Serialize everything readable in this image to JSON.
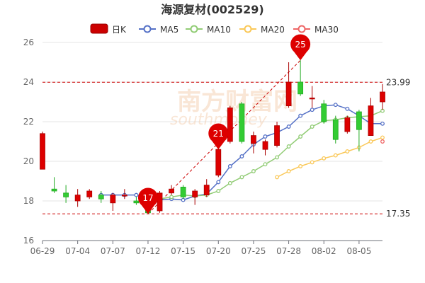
{
  "chart_data": {
    "type": "candlestick",
    "title": "海源复材(002529)",
    "watermark": "南方财富网",
    "watermark_sub": "southmoney",
    "legend": [
      {
        "name": "日K",
        "color": "#cc0000",
        "style": "box"
      },
      {
        "name": "MA5",
        "color": "#5470c6",
        "style": "line"
      },
      {
        "name": "MA10",
        "color": "#91cc75",
        "style": "line"
      },
      {
        "name": "MA20",
        "color": "#fac858",
        "style": "line"
      },
      {
        "name": "MA30",
        "color": "#ee6666",
        "style": "line"
      }
    ],
    "ylim": [
      16,
      26
    ],
    "yticks": [
      16,
      18,
      20,
      22,
      24,
      26
    ],
    "xtick_labels": [
      {
        "label": "06-29",
        "index": 0
      },
      {
        "label": "07-04",
        "index": 3
      },
      {
        "label": "07-07",
        "index": 6
      },
      {
        "label": "07-12",
        "index": 9
      },
      {
        "label": "07-15",
        "index": 12
      },
      {
        "label": "07-20",
        "index": 15
      },
      {
        "label": "07-25",
        "index": 18
      },
      {
        "label": "07-28",
        "index": 21
      },
      {
        "label": "08-02",
        "index": 24
      },
      {
        "label": "08-05",
        "index": 27
      }
    ],
    "up_color": "#dd0000",
    "down_color": "#33cc33",
    "candles": [
      {
        "o": 19.6,
        "c": 21.4,
        "h": 21.5,
        "l": 19.6
      },
      {
        "o": 18.6,
        "c": 18.5,
        "h": 19.2,
        "l": 18.4
      },
      {
        "o": 18.4,
        "c": 18.2,
        "h": 18.8,
        "l": 17.9
      },
      {
        "o": 18.0,
        "c": 18.3,
        "h": 18.6,
        "l": 17.7
      },
      {
        "o": 18.2,
        "c": 18.5,
        "h": 18.6,
        "l": 18.1
      },
      {
        "o": 18.3,
        "c": 18.1,
        "h": 18.5,
        "l": 17.9
      },
      {
        "o": 17.9,
        "c": 18.3,
        "h": 18.4,
        "l": 17.5
      },
      {
        "o": 18.3,
        "c": 18.3,
        "h": 18.6,
        "l": 18.1
      },
      {
        "o": 18.0,
        "c": 17.9,
        "h": 18.2,
        "l": 17.8
      },
      {
        "o": 17.9,
        "c": 17.4,
        "h": 18.1,
        "l": 17.35
      },
      {
        "o": 17.5,
        "c": 18.4,
        "h": 18.5,
        "l": 17.4
      },
      {
        "o": 18.4,
        "c": 18.6,
        "h": 18.8,
        "l": 18.3
      },
      {
        "o": 18.7,
        "c": 18.2,
        "h": 18.8,
        "l": 18.1
      },
      {
        "o": 18.2,
        "c": 18.5,
        "h": 18.6,
        "l": 17.8
      },
      {
        "o": 18.3,
        "c": 18.8,
        "h": 19.1,
        "l": 18.2
      },
      {
        "o": 19.3,
        "c": 20.6,
        "h": 20.7,
        "l": 19.2
      },
      {
        "o": 21.0,
        "c": 22.7,
        "h": 22.8,
        "l": 20.9
      },
      {
        "o": 22.9,
        "c": 21.0,
        "h": 23.0,
        "l": 20.9
      },
      {
        "o": 20.9,
        "c": 21.3,
        "h": 21.5,
        "l": 20.4
      },
      {
        "o": 20.6,
        "c": 21.0,
        "h": 21.1,
        "l": 20.3
      },
      {
        "o": 20.8,
        "c": 21.8,
        "h": 22.0,
        "l": 20.7
      },
      {
        "o": 22.8,
        "c": 24.0,
        "h": 25.0,
        "l": 22.7
      },
      {
        "o": 24.0,
        "c": 23.4,
        "h": 25.1,
        "l": 23.3
      },
      {
        "o": 23.2,
        "c": 23.2,
        "h": 23.8,
        "l": 22.7
      },
      {
        "o": 22.9,
        "c": 22.0,
        "h": 23.1,
        "l": 21.9
      },
      {
        "o": 22.1,
        "c": 21.1,
        "h": 22.3,
        "l": 20.9
      },
      {
        "o": 21.5,
        "c": 22.2,
        "h": 22.3,
        "l": 21.4
      },
      {
        "o": 22.5,
        "c": 21.6,
        "h": 22.6,
        "l": 20.5
      },
      {
        "o": 21.3,
        "c": 22.8,
        "h": 23.2,
        "l": 21.3
      },
      {
        "o": 23.0,
        "c": 23.5,
        "h": 23.9,
        "l": 22.6
      }
    ],
    "ma": [
      {
        "name": "MA5",
        "color": "#5470c6",
        "start": 5,
        "values": [
          18.3,
          18.3,
          18.3,
          18.3,
          18.2,
          18.05,
          18.1,
          18.05,
          18.25,
          18.35,
          18.95,
          19.75,
          20.25,
          20.85,
          21.25,
          21.45,
          21.75,
          22.3,
          22.6,
          22.8,
          22.85,
          22.65,
          22.3,
          21.9,
          21.9
        ]
      },
      {
        "name": "MA10",
        "color": "#91cc75",
        "start": 10,
        "values": [
          18.1,
          18.2,
          18.3,
          18.25,
          18.3,
          18.5,
          18.9,
          19.2,
          19.5,
          19.85,
          20.2,
          20.75,
          21.25,
          21.75,
          22.05,
          22.1,
          22.2,
          22.25,
          22.3,
          22.55
        ]
      },
      {
        "name": "MA20",
        "color": "#fac858",
        "start": 20,
        "values": [
          19.2,
          19.5,
          19.75,
          19.95,
          20.15,
          20.3,
          20.5,
          20.7,
          21.0,
          21.2
        ]
      },
      {
        "name": "MA30",
        "color": "#ee6666",
        "start": 29,
        "values": [
          21.0
        ]
      }
    ],
    "ref_lines": [
      {
        "value": 23.99,
        "label": "23.99"
      },
      {
        "value": 17.35,
        "label": "17.35"
      }
    ],
    "trend_line": {
      "from": [
        9,
        17.35
      ],
      "to": [
        22,
        25.1
      ]
    },
    "pins": [
      {
        "label": "17",
        "index": 9,
        "value": 17.35
      },
      {
        "label": "21",
        "index": 15,
        "value": 20.6
      },
      {
        "label": "25",
        "index": 22,
        "value": 25.1
      }
    ]
  }
}
